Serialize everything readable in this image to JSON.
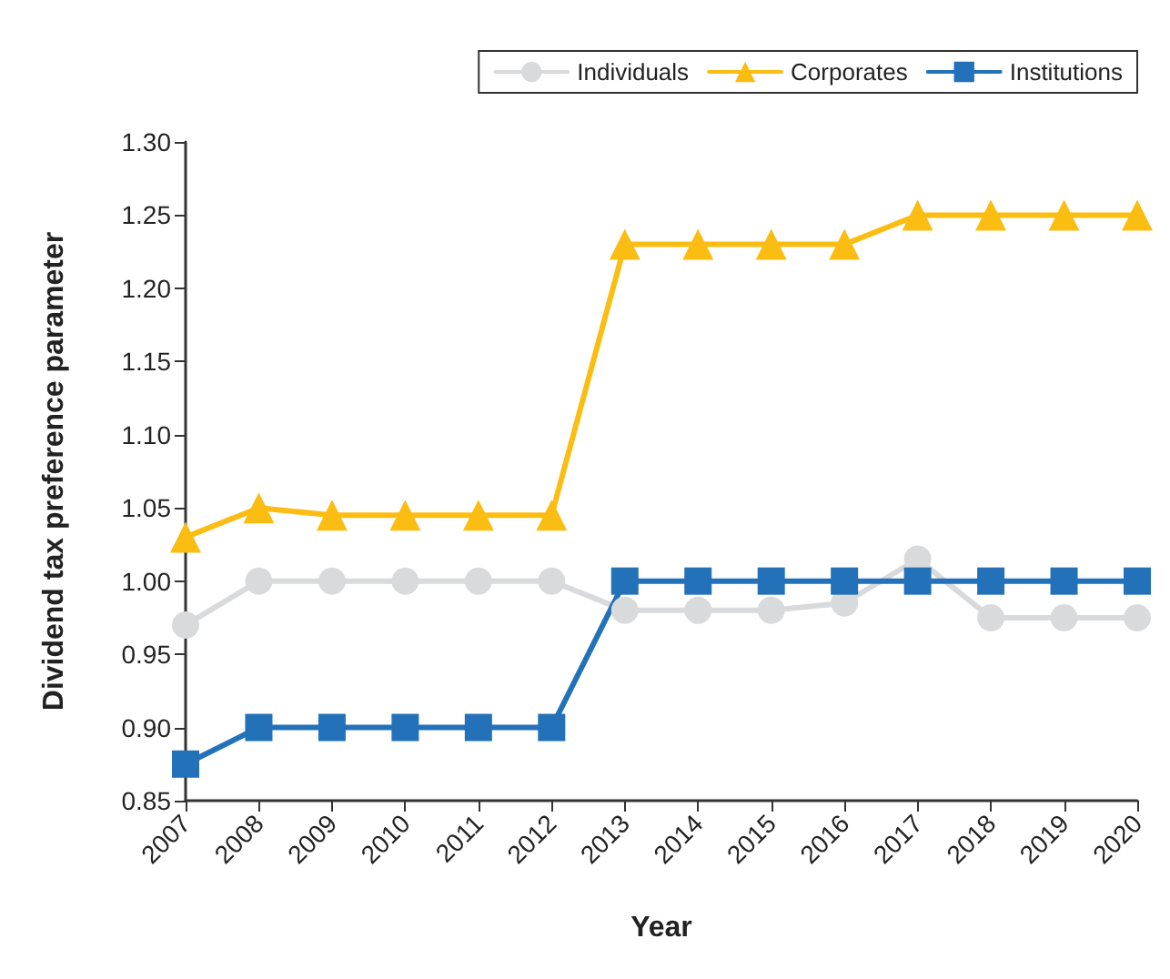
{
  "chart_data": {
    "type": "line",
    "xlabel": "Year",
    "ylabel": "Dividend tax preference parameter",
    "categories": [
      "2007",
      "2008",
      "2009",
      "2010",
      "2011",
      "2012",
      "2013",
      "2014",
      "2015",
      "2016",
      "2017",
      "2018",
      "2019",
      "2020"
    ],
    "series": [
      {
        "name": "Individuals",
        "color": "#d9dadc",
        "marker": "circle",
        "values": [
          0.97,
          1.0,
          1.0,
          1.0,
          1.0,
          1.0,
          0.98,
          0.98,
          0.98,
          0.985,
          1.015,
          0.975,
          0.975,
          0.975
        ]
      },
      {
        "name": "Corporates",
        "color": "#fbbd12",
        "marker": "triangle",
        "values": [
          1.03,
          1.05,
          1.045,
          1.045,
          1.045,
          1.045,
          1.23,
          1.23,
          1.23,
          1.23,
          1.25,
          1.25,
          1.25,
          1.25
        ]
      },
      {
        "name": "Institutions",
        "color": "#2372b9",
        "marker": "square",
        "values": [
          0.875,
          0.9,
          0.9,
          0.9,
          0.9,
          0.9,
          1.0,
          1.0,
          1.0,
          1.0,
          1.0,
          1.0,
          1.0,
          1.0
        ]
      }
    ],
    "ylim": [
      0.85,
      1.3
    ],
    "yticks": [
      0.85,
      {
        "value": 0.9,
        "label": "0.90"
      },
      0.95,
      {
        "value": 1.0,
        "label": "1.00"
      },
      1.05,
      {
        "value": 1.1,
        "label": "1.10"
      },
      1.15,
      {
        "value": 1.2,
        "label": "1.20"
      },
      1.25,
      {
        "value": 1.3,
        "label": "1.30"
      }
    ],
    "grid": false,
    "legend": "top right",
    "line_style": "solid"
  }
}
